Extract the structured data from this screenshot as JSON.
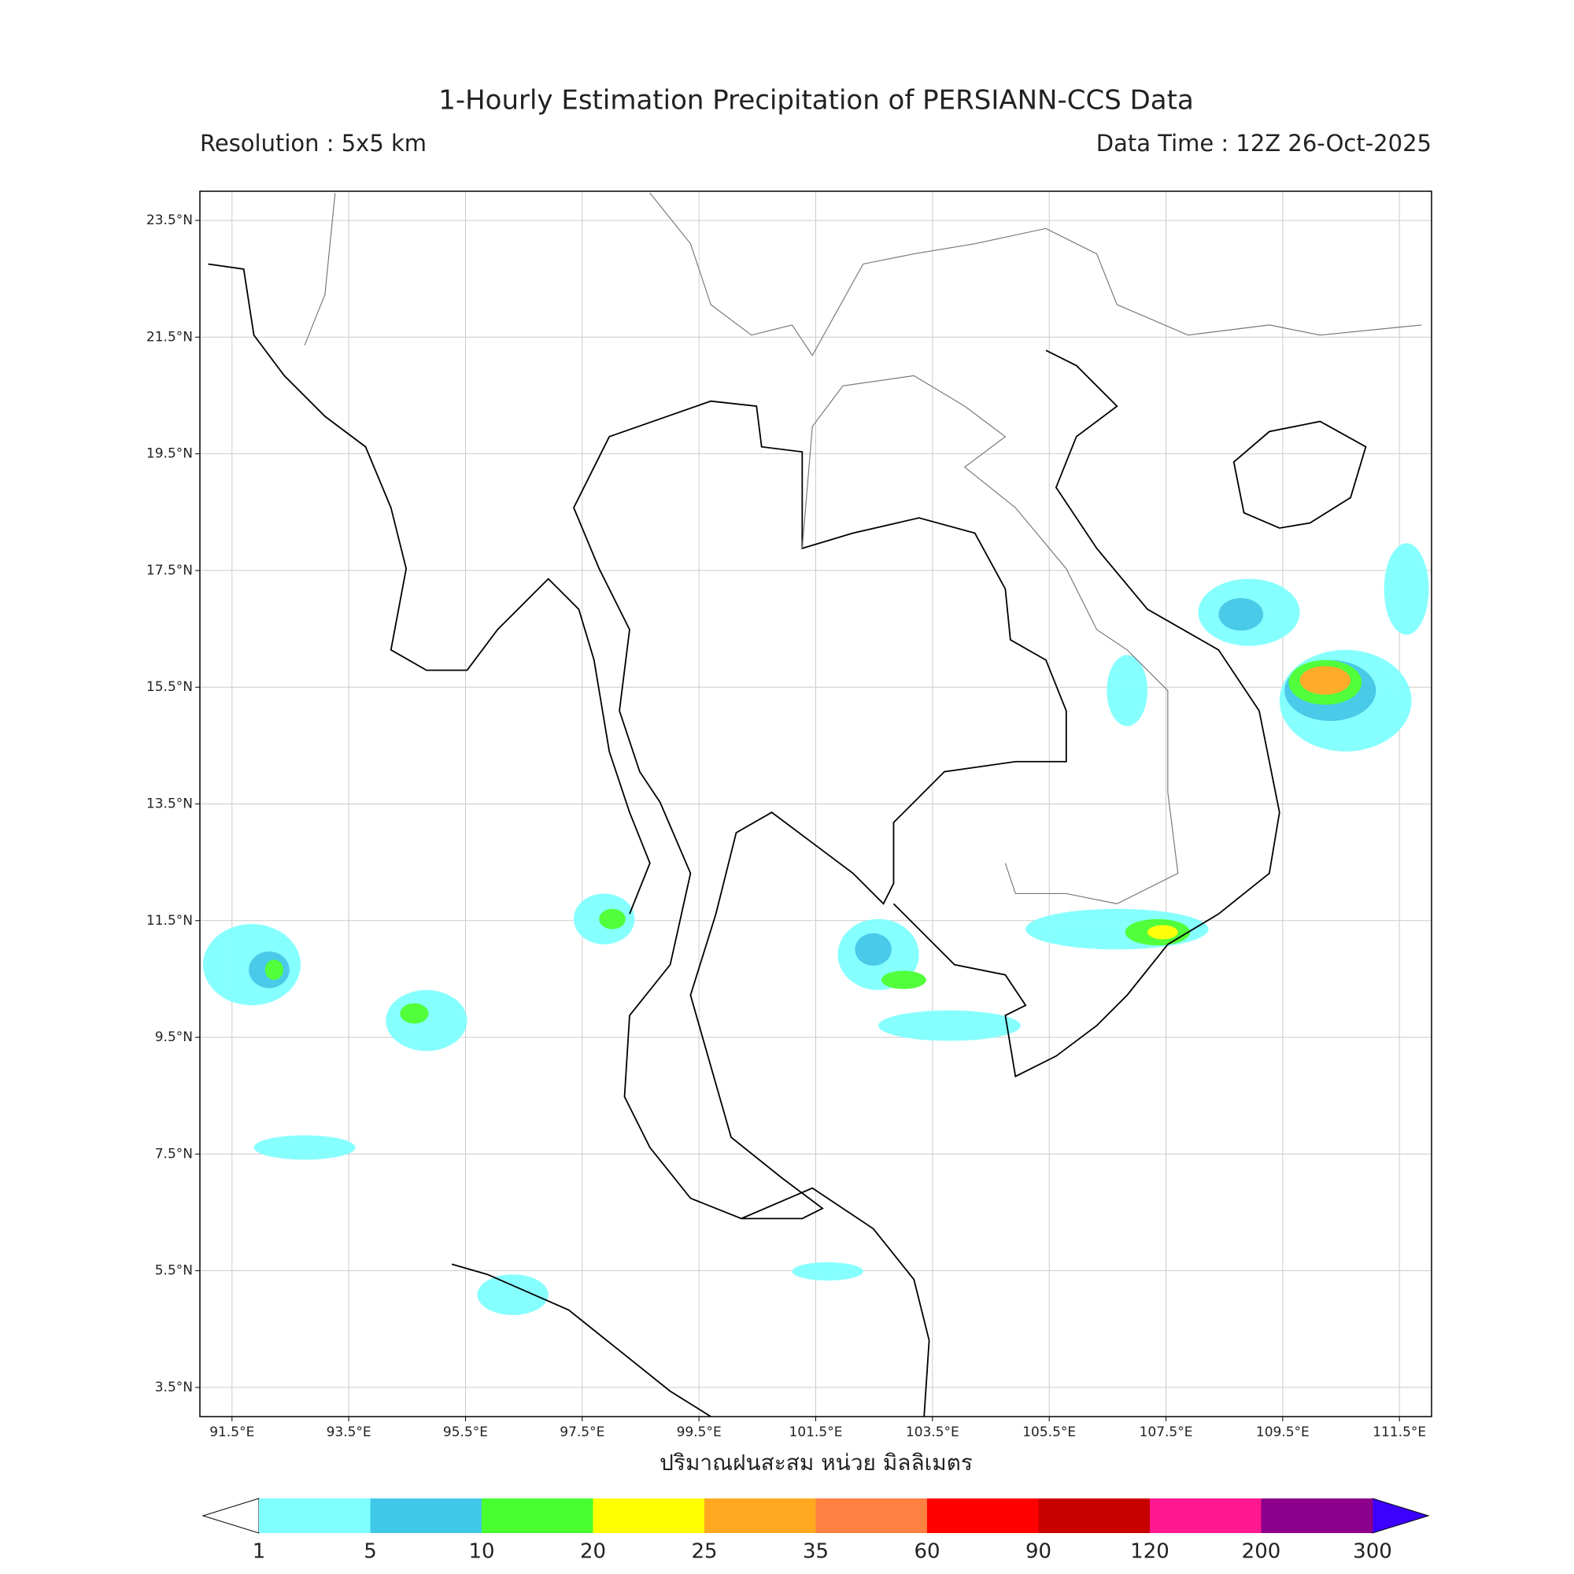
{
  "title": "1-Hourly Estimation Precipitation of PERSIANN-CCS Data",
  "subtitle_left": "Resolution : 5x5 km",
  "subtitle_right": "Data Time : 12Z 26-Oct-2025",
  "map": {
    "xlim": [
      90.95,
      112.05
    ],
    "ylim": [
      3.0,
      24.0
    ],
    "grid": true,
    "xticks": [
      {
        "value": 91.5,
        "label": "91.5°E"
      },
      {
        "value": 93.5,
        "label": "93.5°E"
      },
      {
        "value": 95.5,
        "label": "95.5°E"
      },
      {
        "value": 97.5,
        "label": "97.5°E"
      },
      {
        "value": 99.5,
        "label": "99.5°E"
      },
      {
        "value": 101.5,
        "label": "101.5°E"
      },
      {
        "value": 103.5,
        "label": "103.5°E"
      },
      {
        "value": 105.5,
        "label": "105.5°E"
      },
      {
        "value": 107.5,
        "label": "107.5°E"
      },
      {
        "value": 109.5,
        "label": "109.5°E"
      },
      {
        "value": 111.5,
        "label": "111.5°E"
      }
    ],
    "yticks": [
      {
        "value": 3.5,
        "label": "3.5°N"
      },
      {
        "value": 5.5,
        "label": "5.5°N"
      },
      {
        "value": 7.5,
        "label": "7.5°N"
      },
      {
        "value": 9.5,
        "label": "9.5°N"
      },
      {
        "value": 11.5,
        "label": "11.5°N"
      },
      {
        "value": 13.5,
        "label": "13.5°N"
      },
      {
        "value": 15.5,
        "label": "15.5°N"
      },
      {
        "value": 17.5,
        "label": "17.5°N"
      },
      {
        "value": 19.5,
        "label": "19.5°N"
      },
      {
        "value": 21.5,
        "label": "21.5°N"
      },
      {
        "value": 23.5,
        "label": "23.5°N"
      }
    ],
    "xlabel": "ปริมาณฝนสะสม หน่วย มิลลิเมตร"
  },
  "colorbar": {
    "bounds": [
      1,
      5,
      10,
      20,
      25,
      35,
      60,
      90,
      120,
      200,
      300
    ],
    "colors": [
      "#80ffff",
      "#40c8e8",
      "#48ff30",
      "#ffff00",
      "#ffa820",
      "#ff8040",
      "#ff0000",
      "#c80000",
      "#ff1890",
      "#8c008c"
    ],
    "under_color": "#ffffff",
    "over_color": "#3c00ff"
  }
}
